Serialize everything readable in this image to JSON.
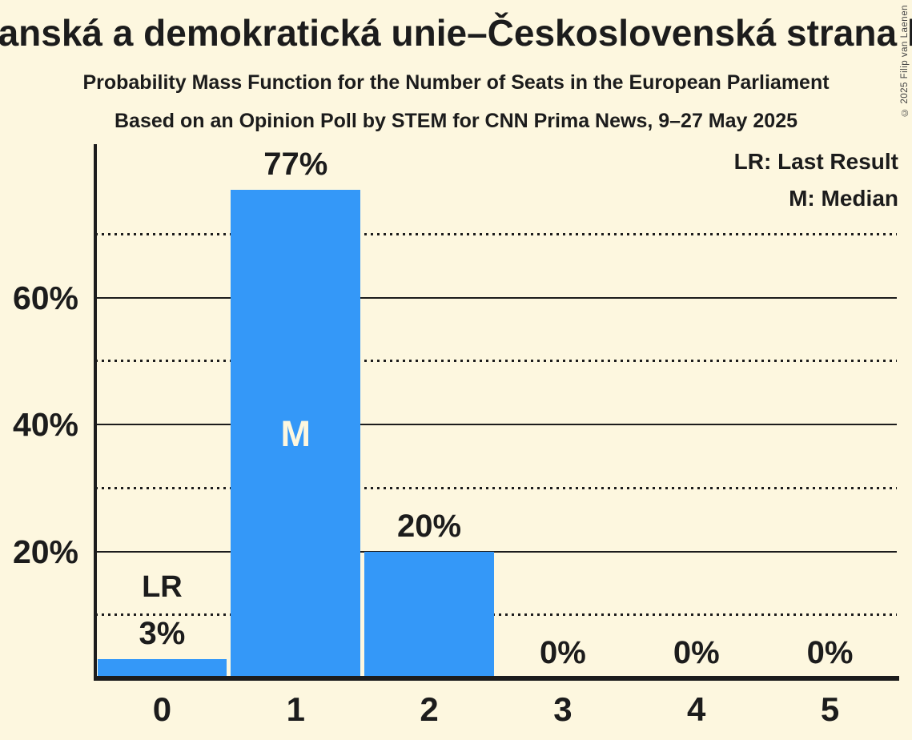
{
  "title": "Křesťanská a demokratická unie–Československá strana lidová",
  "subtitle": "Probability Mass Function for the Number of Seats in the European Parliament",
  "source_line": "Based on an Opinion Poll by STEM for CNN Prima News, 9–27 May 2025",
  "copyright": "© 2025 Filip van Laenen",
  "legend": {
    "last_result": "LR: Last Result",
    "median": "M: Median"
  },
  "colors": {
    "background": "#FDF7DF",
    "bar": "#3498F8",
    "text": "#1C1C1C"
  },
  "chart_data": {
    "type": "bar",
    "title": "Probability Mass Function for the Number of Seats in the European Parliament",
    "categories": [
      "0",
      "1",
      "2",
      "3",
      "4",
      "5"
    ],
    "values": [
      3,
      77,
      20,
      0,
      0,
      0
    ],
    "value_labels": [
      "3%",
      "77%",
      "20%",
      "0%",
      "0%",
      "0%"
    ],
    "last_result": {
      "category_index": 0,
      "label": "LR"
    },
    "median": {
      "category_index": 1,
      "label": "M"
    },
    "xlabel": "",
    "ylabel": "",
    "ylim": [
      0,
      84
    ],
    "yticks": [
      {
        "value": 20,
        "label": "20%"
      },
      {
        "value": 40,
        "label": "40%"
      },
      {
        "value": 60,
        "label": "60%"
      }
    ],
    "solid_gridlines": [
      20,
      40,
      60
    ],
    "dotted_gridlines": [
      10,
      30,
      50,
      70
    ],
    "grid": true,
    "legend_position": "top-right",
    "bar_color": "#3498F8"
  }
}
